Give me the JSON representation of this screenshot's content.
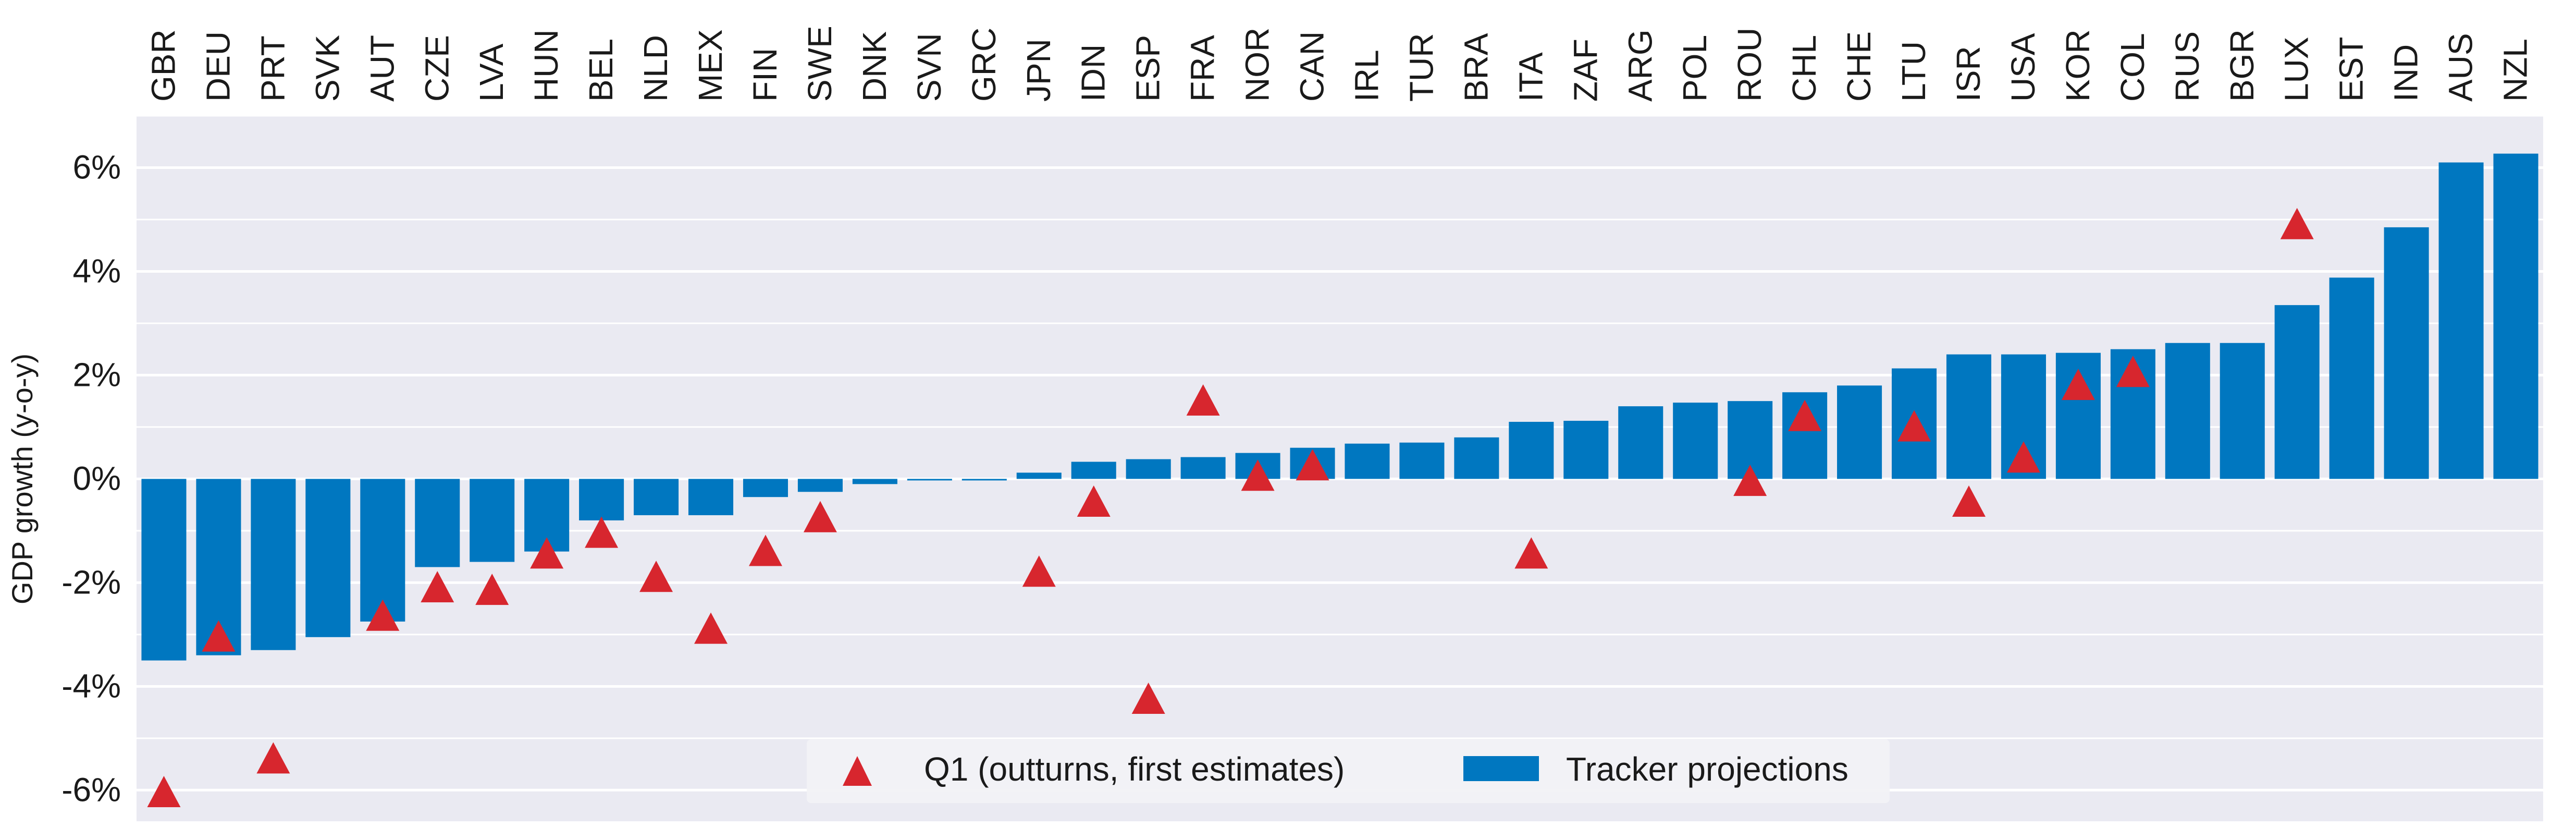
{
  "chart_data": {
    "type": "bar",
    "ylabel": "GDP growth (y-o-y)",
    "ylim": [
      -6.6,
      7.0
    ],
    "yticks": [
      -6,
      -4,
      -2,
      0,
      2,
      4,
      6
    ],
    "ytick_labels": [
      "-6%",
      "-4%",
      "-2%",
      "0%",
      "2%",
      "4%",
      "6%"
    ],
    "grid": true,
    "legend_position": "bottom-center",
    "categories": [
      "GBR",
      "DEU",
      "PRT",
      "SVK",
      "AUT",
      "CZE",
      "LVA",
      "HUN",
      "BEL",
      "NLD",
      "MEX",
      "FIN",
      "SWE",
      "DNK",
      "SVN",
      "GRC",
      "JPN",
      "IDN",
      "ESP",
      "FRA",
      "NOR",
      "CAN",
      "IRL",
      "TUR",
      "BRA",
      "ITA",
      "ZAF",
      "ARG",
      "POL",
      "ROU",
      "CHL",
      "CHE",
      "LTU",
      "ISR",
      "USA",
      "KOR",
      "COL",
      "RUS",
      "BGR",
      "LUX",
      "EST",
      "IND",
      "AUS",
      "NZL"
    ],
    "series": [
      {
        "name": "Tracker projections",
        "kind": "bar",
        "color": "#0077c0",
        "values": [
          -3.5,
          -3.4,
          -3.3,
          -3.05,
          -2.75,
          -1.7,
          -1.6,
          -1.4,
          -0.8,
          -0.7,
          -0.7,
          -0.35,
          -0.25,
          -0.1,
          -0.03,
          -0.03,
          0.12,
          0.33,
          0.38,
          0.42,
          0.5,
          0.6,
          0.68,
          0.7,
          0.8,
          1.1,
          1.12,
          1.4,
          1.47,
          1.5,
          1.67,
          1.8,
          2.13,
          2.4,
          2.4,
          2.43,
          2.5,
          2.62,
          2.62,
          3.35,
          3.88,
          4.85,
          6.1,
          6.27
        ]
      },
      {
        "name": "Q1 (outturns, first estimates)",
        "kind": "marker",
        "marker": "triangle",
        "color": "#d7262e",
        "values": [
          -6.1,
          -3.1,
          -5.45,
          null,
          -2.7,
          -2.15,
          -2.2,
          -1.5,
          -1.1,
          -1.95,
          -2.95,
          -1.45,
          -0.8,
          null,
          null,
          null,
          -1.85,
          -0.5,
          -4.3,
          1.45,
          0.0,
          0.2,
          null,
          null,
          null,
          -1.5,
          null,
          null,
          null,
          -0.1,
          1.15,
          null,
          0.95,
          -0.5,
          0.35,
          1.75,
          2.0,
          null,
          null,
          4.85,
          null,
          null,
          null,
          null
        ]
      }
    ]
  }
}
